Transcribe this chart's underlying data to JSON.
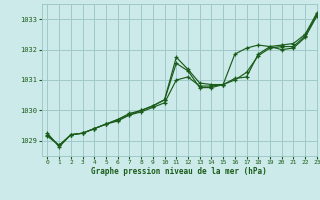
{
  "title": "Graphe pression niveau de la mer (hPa)",
  "bg_color": "#cdeaea",
  "grid_color": "#9fc8c8",
  "line_color": "#1a5c1a",
  "xlim": [
    -0.5,
    23
  ],
  "ylim": [
    1028.5,
    1033.5
  ],
  "yticks": [
    1029,
    1030,
    1031,
    1032,
    1033
  ],
  "xticks": [
    0,
    1,
    2,
    3,
    4,
    5,
    6,
    7,
    8,
    9,
    10,
    11,
    12,
    13,
    14,
    15,
    16,
    17,
    18,
    19,
    20,
    21,
    22,
    23
  ],
  "series1_x": [
    0,
    1,
    2,
    3,
    4,
    5,
    6,
    7,
    8,
    9,
    10,
    11,
    12,
    13,
    14,
    15,
    16,
    17,
    18,
    19,
    20,
    21,
    22,
    23
  ],
  "series1_y": [
    1029.25,
    1028.8,
    1029.2,
    1029.25,
    1029.4,
    1029.55,
    1029.7,
    1029.85,
    1030.0,
    1030.15,
    1030.35,
    1031.75,
    1031.35,
    1030.9,
    1030.85,
    1030.85,
    1031.05,
    1031.1,
    1031.85,
    1032.1,
    1032.15,
    1032.2,
    1032.5,
    1033.2
  ],
  "series2_x": [
    0,
    1,
    2,
    3,
    4,
    5,
    6,
    7,
    8,
    9,
    10,
    11,
    12,
    13,
    14,
    15,
    16,
    17,
    18,
    19,
    20,
    21,
    22,
    23
  ],
  "series2_y": [
    1029.15,
    1028.85,
    1029.2,
    1029.25,
    1029.4,
    1029.55,
    1029.7,
    1029.9,
    1030.0,
    1030.15,
    1030.35,
    1031.55,
    1031.3,
    1030.75,
    1030.75,
    1030.85,
    1031.0,
    1031.25,
    1031.8,
    1032.05,
    1032.1,
    1032.1,
    1032.45,
    1033.15
  ],
  "series3_x": [
    0,
    1,
    2,
    3,
    4,
    5,
    6,
    7,
    8,
    9,
    10,
    11,
    12,
    13,
    14,
    15,
    16,
    17,
    18,
    19,
    20,
    21,
    22,
    23
  ],
  "series3_y": [
    1029.2,
    1028.85,
    1029.2,
    1029.25,
    1029.4,
    1029.55,
    1029.65,
    1029.85,
    1029.95,
    1030.1,
    1030.25,
    1031.0,
    1031.1,
    1030.8,
    1030.8,
    1030.85,
    1031.85,
    1032.05,
    1032.15,
    1032.1,
    1032.0,
    1032.05,
    1032.4,
    1033.1
  ]
}
